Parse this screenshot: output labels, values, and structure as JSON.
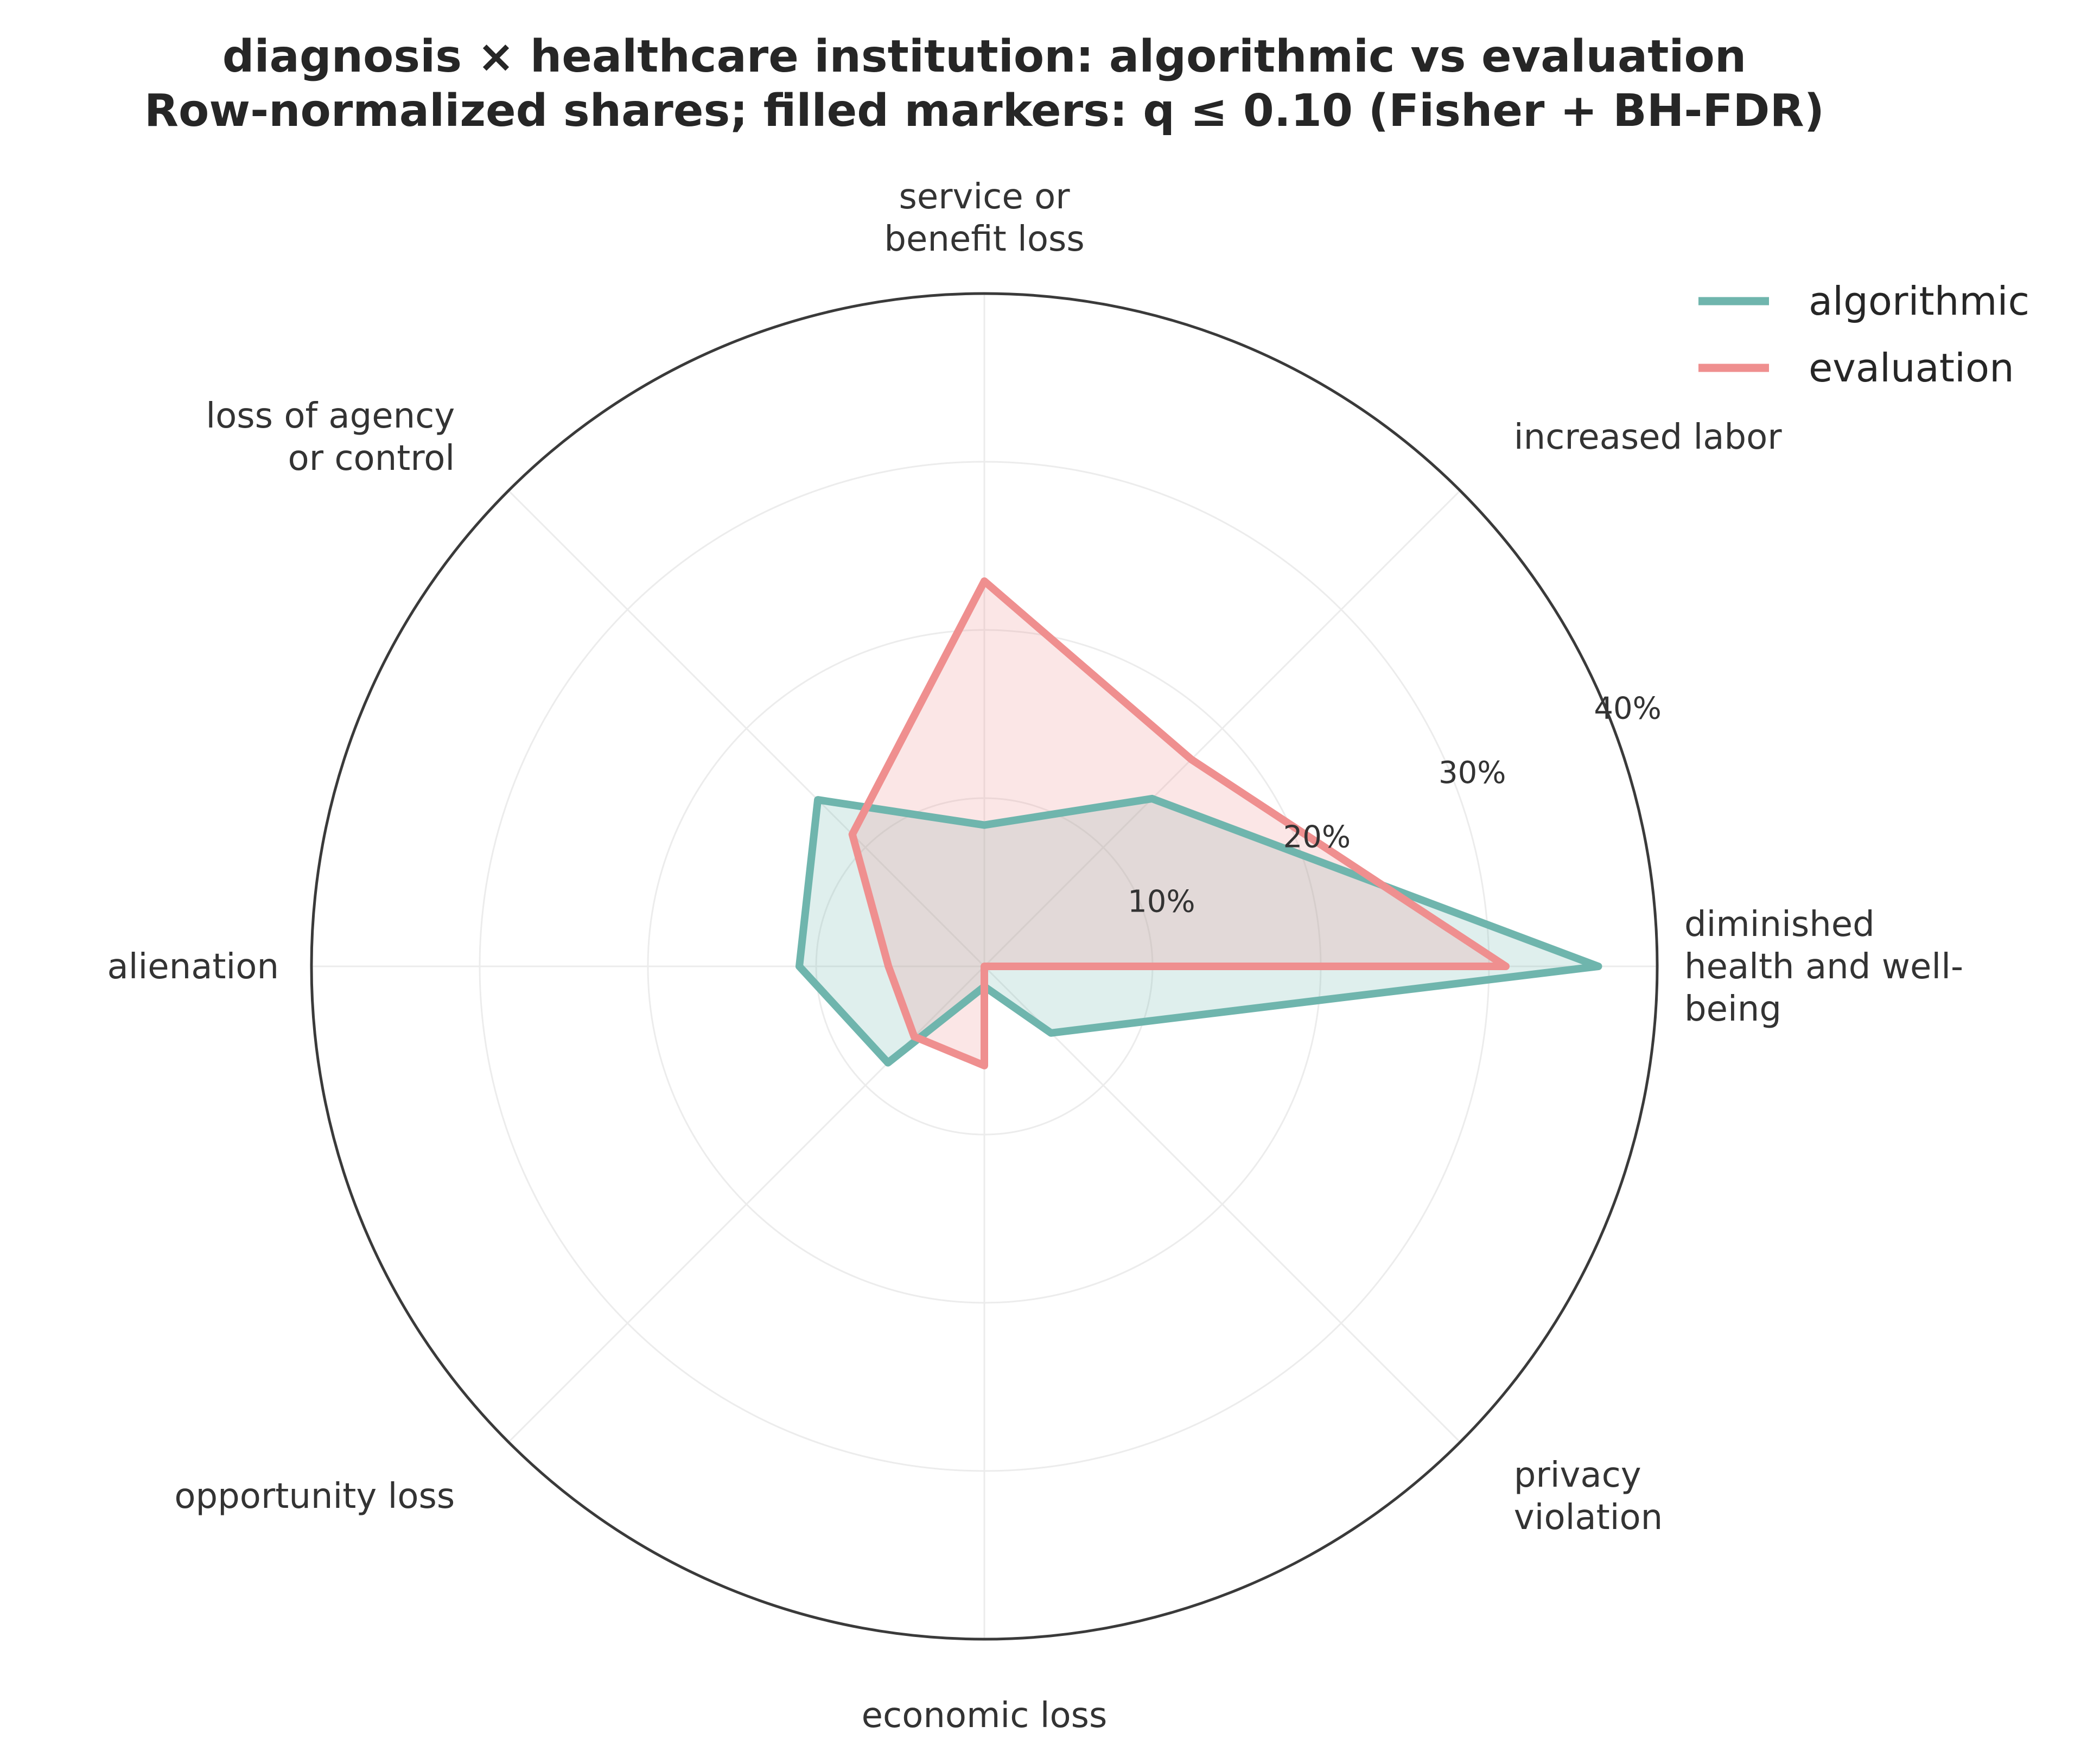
{
  "title": {
    "line1": "diagnosis × healthcare institution: algorithmic vs evaluation",
    "line2": "Row-normalized shares; filled markers: q ≤ 0.10 (Fisher + BH-FDR)"
  },
  "legend": {
    "placement": "top-right",
    "items": [
      {
        "label": "algorithmic",
        "color": "#6fb5ad"
      },
      {
        "label": "evaluation",
        "color": "#ef8f8f"
      }
    ]
  },
  "chart_data": {
    "type": "radar",
    "categories": [
      "diminished health and well-being",
      "increased labor",
      "service or benefit loss",
      "loss of agency or control",
      "alienation",
      "opportunity loss",
      "economic loss",
      "privacy violation"
    ],
    "category_label_lines": [
      [
        "diminished",
        "health and well-",
        "being"
      ],
      [
        "increased labor"
      ],
      [
        "service or",
        "benefit loss"
      ],
      [
        "loss of agency",
        "or control"
      ],
      [
        "alienation"
      ],
      [
        "opportunity loss"
      ],
      [
        "economic loss"
      ],
      [
        "privacy",
        "violation"
      ]
    ],
    "series": [
      {
        "name": "algorithmic",
        "color": "#6fb5ad",
        "values": [
          36.5,
          14.1,
          8.4,
          14.0,
          11.0,
          8.1,
          1.2,
          5.6
        ]
      },
      {
        "name": "evaluation",
        "color": "#ef8f8f",
        "values": [
          31.0,
          17.4,
          22.9,
          11.1,
          5.7,
          5.9,
          5.9,
          0.0
        ]
      }
    ],
    "rlim": [
      0,
      40
    ],
    "r_ticks": [
      10,
      20,
      30,
      40
    ],
    "r_tick_labels": [
      "10%",
      "20%",
      "30%",
      "40%"
    ],
    "grid": true
  }
}
